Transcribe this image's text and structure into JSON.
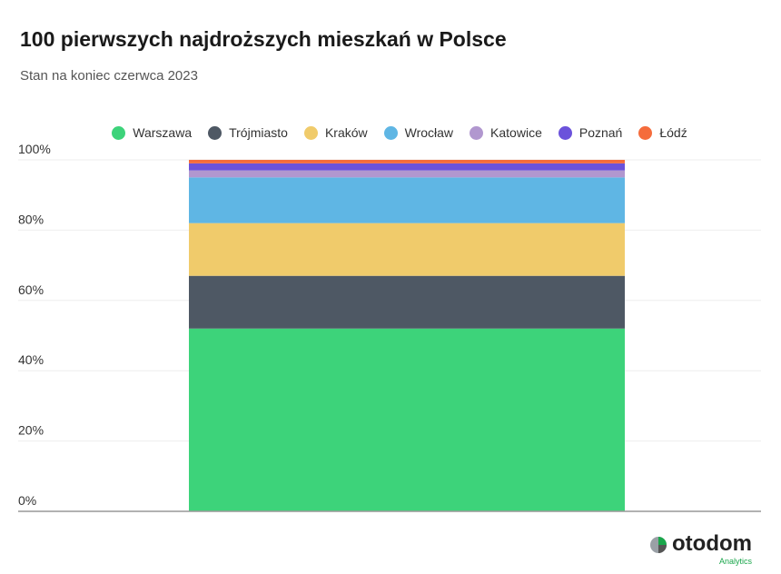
{
  "title": "100 pierwszych najdroższych mieszkań w Polsce",
  "subtitle": "Stan na koniec czerwca 2023",
  "logo": {
    "name": "otodom",
    "sub": "Analytics"
  },
  "chart_data": {
    "type": "bar",
    "stacked": true,
    "normalized": true,
    "categories": [
      ""
    ],
    "ylim": [
      0,
      100
    ],
    "yticks": [
      "0%",
      "20%",
      "40%",
      "60%",
      "80%",
      "100%"
    ],
    "grid": true,
    "legend": "top",
    "series": [
      {
        "name": "Warszawa",
        "values": [
          52
        ],
        "color": "#3dd37a"
      },
      {
        "name": "Trójmiasto",
        "values": [
          15
        ],
        "color": "#4e5864"
      },
      {
        "name": "Kraków",
        "values": [
          15
        ],
        "color": "#f0cb6b"
      },
      {
        "name": "Wrocław",
        "values": [
          13
        ],
        "color": "#5fb6e4"
      },
      {
        "name": "Katowice",
        "values": [
          2
        ],
        "color": "#b197cf"
      },
      {
        "name": "Poznań",
        "values": [
          2
        ],
        "color": "#6b52db"
      },
      {
        "name": "Łódź",
        "values": [
          1
        ],
        "color": "#f56c3c"
      }
    ]
  }
}
